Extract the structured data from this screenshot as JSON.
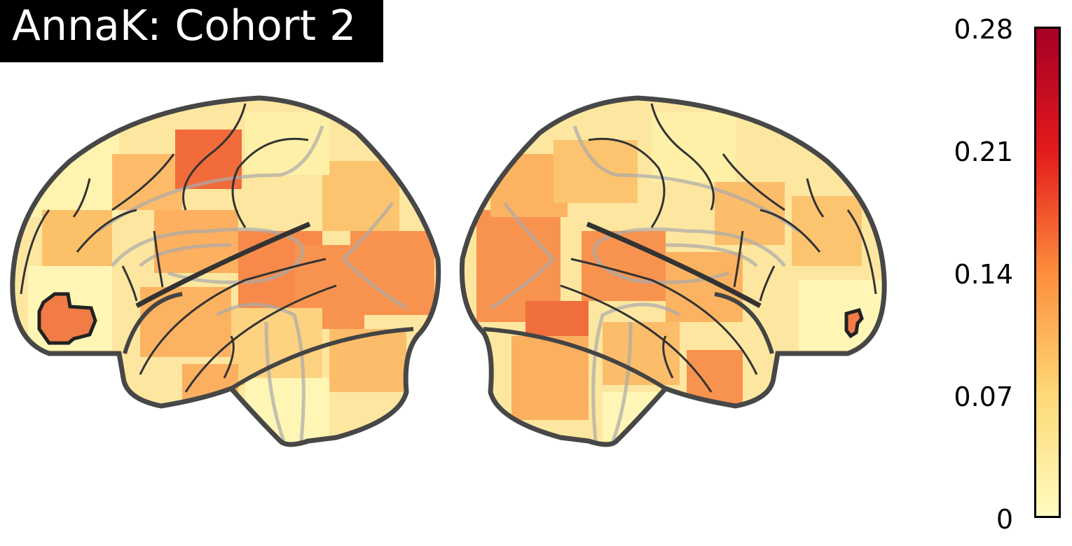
{
  "title": "AnnaK: Cohort 2",
  "colorbar": {
    "ticks": [
      "0.28",
      "0.21",
      "0.14",
      "0.07",
      "0"
    ],
    "min": 0,
    "max": 0.28,
    "colormap": "YlOrRd",
    "colors": [
      "#fffbc0",
      "#fed976",
      "#fd8d3c",
      "#e31a1c",
      "#a50026"
    ]
  },
  "views": [
    {
      "name": "left-lateral-hemisphere",
      "highlighted_cluster": "frontal-pole"
    },
    {
      "name": "right-lateral-hemisphere",
      "highlighted_cluster": "frontal-pole"
    }
  ]
}
